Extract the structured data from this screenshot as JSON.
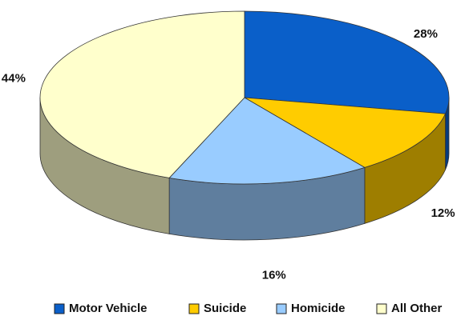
{
  "chart_data": {
    "type": "pie",
    "categories": [
      "Motor Vehicle",
      "Suicide",
      "Homicide",
      "All Other"
    ],
    "values": [
      28,
      12,
      16,
      44
    ],
    "value_labels": [
      "28%",
      "12%",
      "16%",
      "44%"
    ],
    "colors": [
      "#0a5fc9",
      "#ffcc00",
      "#99ccff",
      "#ffffcc"
    ],
    "legend": "bottom"
  }
}
